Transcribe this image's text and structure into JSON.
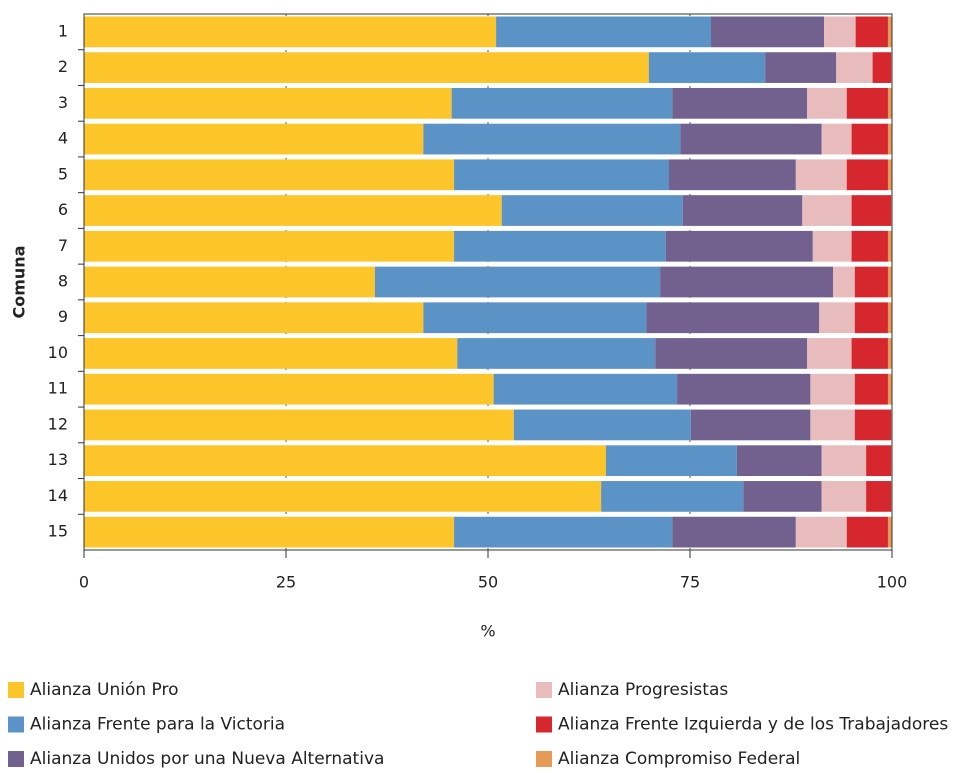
{
  "chart_data": {
    "type": "stacked_barh",
    "xlabel": "%",
    "ylabel": "Comuna",
    "categories": [
      "1",
      "2",
      "3",
      "4",
      "5",
      "6",
      "7",
      "8",
      "9",
      "10",
      "11",
      "12",
      "13",
      "14",
      "15"
    ],
    "series": [
      {
        "name": "Alianza Unión Pro",
        "color": "#fcc52a",
        "values": [
          51.0,
          69.9,
          45.5,
          42.0,
          45.8,
          51.7,
          45.8,
          36.0,
          42.0,
          46.2,
          50.7,
          53.2,
          64.6,
          64.0,
          45.8
        ]
      },
      {
        "name": "Alianza Frente para la Victoria",
        "color": "#5b93c7",
        "values": [
          26.6,
          14.4,
          27.3,
          31.8,
          26.6,
          22.4,
          26.2,
          35.3,
          27.6,
          24.5,
          22.7,
          21.9,
          16.2,
          17.6,
          27.0
        ]
      },
      {
        "name": "Alianza Unidos por una Nueva Alternativa",
        "color": "#72618f",
        "values": [
          14.0,
          8.8,
          16.7,
          17.5,
          15.7,
          14.8,
          18.2,
          21.4,
          21.4,
          18.8,
          16.5,
          14.8,
          10.5,
          9.7,
          15.3
        ]
      },
      {
        "name": "Alianza Progresistas",
        "color": "#e8bcbc",
        "values": [
          3.9,
          4.5,
          4.9,
          3.7,
          6.3,
          6.1,
          4.8,
          2.7,
          4.4,
          5.5,
          5.5,
          5.5,
          5.5,
          5.5,
          6.3
        ]
      },
      {
        "name": "Alianza Frente Izquierda y de los Trabajadores",
        "color": "#d6262e",
        "values": [
          4.0,
          2.3,
          5.1,
          4.5,
          5.1,
          4.9,
          4.5,
          4.1,
          4.1,
          4.5,
          4.1,
          4.5,
          3.1,
          3.1,
          5.1
        ]
      },
      {
        "name": "Alianza Compromiso Federal",
        "color": "#e59a58",
        "values": [
          0.5,
          0.1,
          0.5,
          0.5,
          0.5,
          0.1,
          0.5,
          0.5,
          0.5,
          0.5,
          0.5,
          0.1,
          0.1,
          0.1,
          0.5
        ]
      }
    ],
    "xlim": [
      0,
      100
    ],
    "xticks": [
      0,
      25,
      50,
      75,
      100
    ],
    "grid": true
  }
}
